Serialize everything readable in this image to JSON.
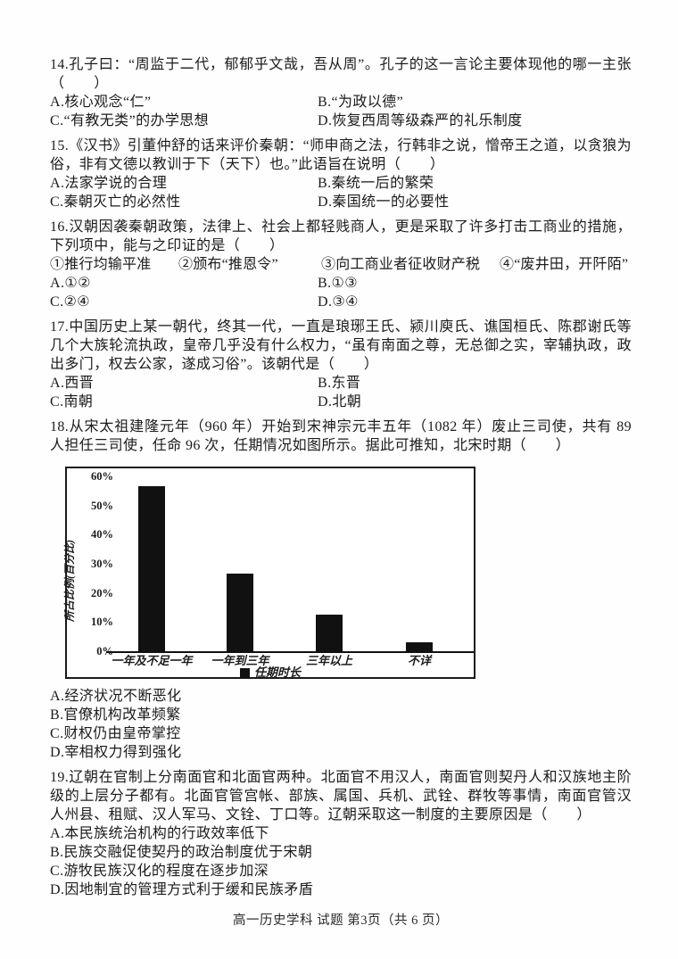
{
  "footer": "高一历史学科 试题 第3页（共 6 页）",
  "questions": {
    "q14": {
      "stem": "14.孔子曰：“周监于二代，郁郁乎文哉，吾从周”。孔子的这一言论主要体现他的哪一主张（　　）",
      "optA": "A.核心观念“仁”",
      "optB": "B.“为政以德”",
      "optC": "C.“有教无类”的办学思想",
      "optD": "D.恢复西周等级森严的礼乐制度"
    },
    "q15": {
      "stem": "15.《汉书》引董仲舒的话来评价秦朝：“师申商之法，行韩非之说，憎帝王之道，以贪狼为俗，非有文德以教训于下（天下）也。”此语旨在说明（　　）",
      "optA": "A.法家学说的合理",
      "optB": "B.秦统一后的繁荣",
      "optC": "C.秦朝灭亡的必然性",
      "optD": "D.秦国统一的必要性"
    },
    "q16": {
      "stem": "16.汉朝因袭秦朝政策，法律上、社会上都轻贱商人，更是采取了许多打击工商业的措施，下列项中，能与之印证的是（　　）",
      "item1": "①推行均输平准",
      "item2": "②颁布“推恩令”",
      "item3": "③向工商业者征收财产税",
      "item4": "④“废井田，开阡陌”",
      "optA": "A.①②",
      "optB": "B.①③",
      "optC": "C.②④",
      "optD": "D.③④"
    },
    "q17": {
      "stem": "17.中国历史上某一朝代，终其一代，一直是琅琊王氏、颍川庾氏、谯国桓氏、陈郡谢氏等几个大族轮流执政，皇帝几乎没有什么权力，“虽有南面之尊，无总御之实，宰辅执政，政出多门，权去公家，遂成习俗”。该朝代是（　　）",
      "optA": "A.西晋",
      "optB": "B.东晋",
      "optC": "C.南朝",
      "optD": "D.北朝"
    },
    "q18": {
      "stem": "18.从宋太祖建隆元年（960 年）开始到宋神宗元丰五年（1082 年）废止三司使，共有 89 人担任三司使，任命 96 次，任期情况如图所示。据此可推知，北宋时期（　　）",
      "optA": "A.经济状况不断恶化",
      "optB": "B.官僚机构改革频繁",
      "optC": "C.财权仍由皇帝掌控",
      "optD": "D.宰相权力得到强化"
    },
    "q19": {
      "stem": "19.辽朝在官制上分南面官和北面官两种。北面官不用汉人，南面官则契丹人和汉族地主阶级的上层分子都有。北面官管宫帐、部族、属国、兵机、武铨、群牧等事情，南面官管汉人州县、租赋、汉人军马、文铨、丁口等。辽朝采取这一制度的主要原因是（　　）",
      "optA": "A.本民族统治机构的行政效率低下",
      "optB": "B.民族交融促使契丹的政治制度优于宋朝",
      "optC": "C.游牧民族汉化的程度在逐步加深",
      "optD": "D.因地制宜的管理方式利于缓和民族矛盾"
    }
  },
  "chart_data": {
    "type": "bar",
    "title": "",
    "categories": [
      "一年及不足一年",
      "一年到三年",
      "三年以上",
      "不详"
    ],
    "values": [
      56.5,
      26.5,
      12.5,
      3
    ],
    "xlabel": "",
    "ylabel": "所占比例(百分比)",
    "yticks": [
      "0%",
      "10%",
      "20%",
      "30%",
      "40%",
      "50%",
      "60%"
    ],
    "ylim": [
      0,
      60
    ],
    "legend": "任期时长",
    "legend_position": "bottom",
    "grid": false,
    "bar_color": "#111111"
  }
}
